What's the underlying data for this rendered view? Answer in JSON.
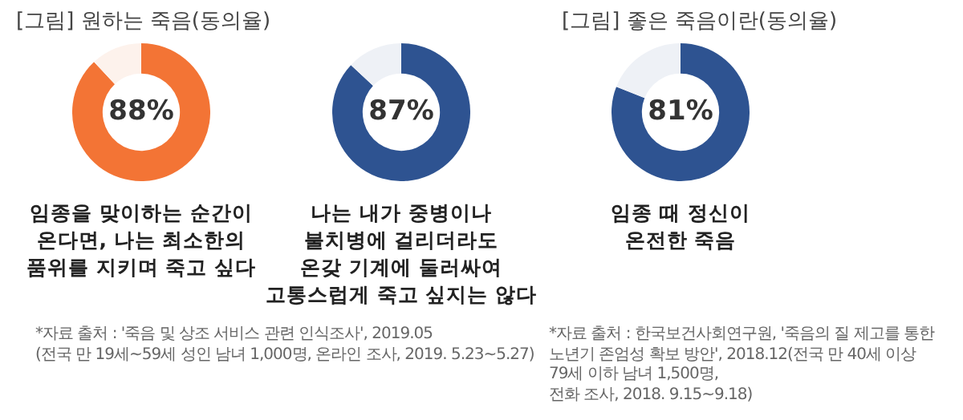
{
  "chart_data": [
    {
      "type": "donut",
      "title": "[그림] 원하는 죽음(동의율)",
      "categories": [
        null,
        null
      ],
      "values": [
        88,
        12
      ],
      "colors": [
        "#f37435",
        "#fdf2ec"
      ],
      "value_labels": [
        "88%",
        null
      ],
      "legend": false,
      "annotations": [
        "임종을 맞이하는 순간이\n온다면, 나는 최소한의\n품위를 지키며 죽고 싶다"
      ]
    },
    {
      "type": "donut",
      "categories": [
        null,
        null
      ],
      "values": [
        87,
        13
      ],
      "colors": [
        "#2e5391",
        "#eef1f6"
      ],
      "value_labels": [
        "87%",
        null
      ],
      "legend": false,
      "annotations": [
        "나는 내가 중병이나\n불치병에 걸리더라도\n온갖 기계에 둘러싸여\n고통스럽게 죽고 싶지는 않다",
        "*자료 출처 : '죽음 및 상조 서비스 관련 인식조사', 2019.05\n(전국 만 19세~59세 성인 남녀 1,000명, 온라인 조사, 2019. 5.23~5.27)"
      ]
    },
    {
      "type": "donut",
      "title": "[그림] 좋은 죽음이란(동의율)",
      "categories": [
        null,
        null
      ],
      "values": [
        81,
        19
      ],
      "colors": [
        "#2e5391",
        "#eef1f6"
      ],
      "value_labels": [
        "81%",
        null
      ],
      "legend": false,
      "annotations": [
        "임종 때 정신이\n온전한 죽음",
        "*자료 출처 : 한국보건사회연구원, '죽음의 질 제고를 통한\n노년기 존엄성 확보 방안', 2018.12(전국 만 40세 이상\n79세 이하 남녀 1,500명,\n전화 조사, 2018. 9.15~9.18)"
      ]
    }
  ]
}
